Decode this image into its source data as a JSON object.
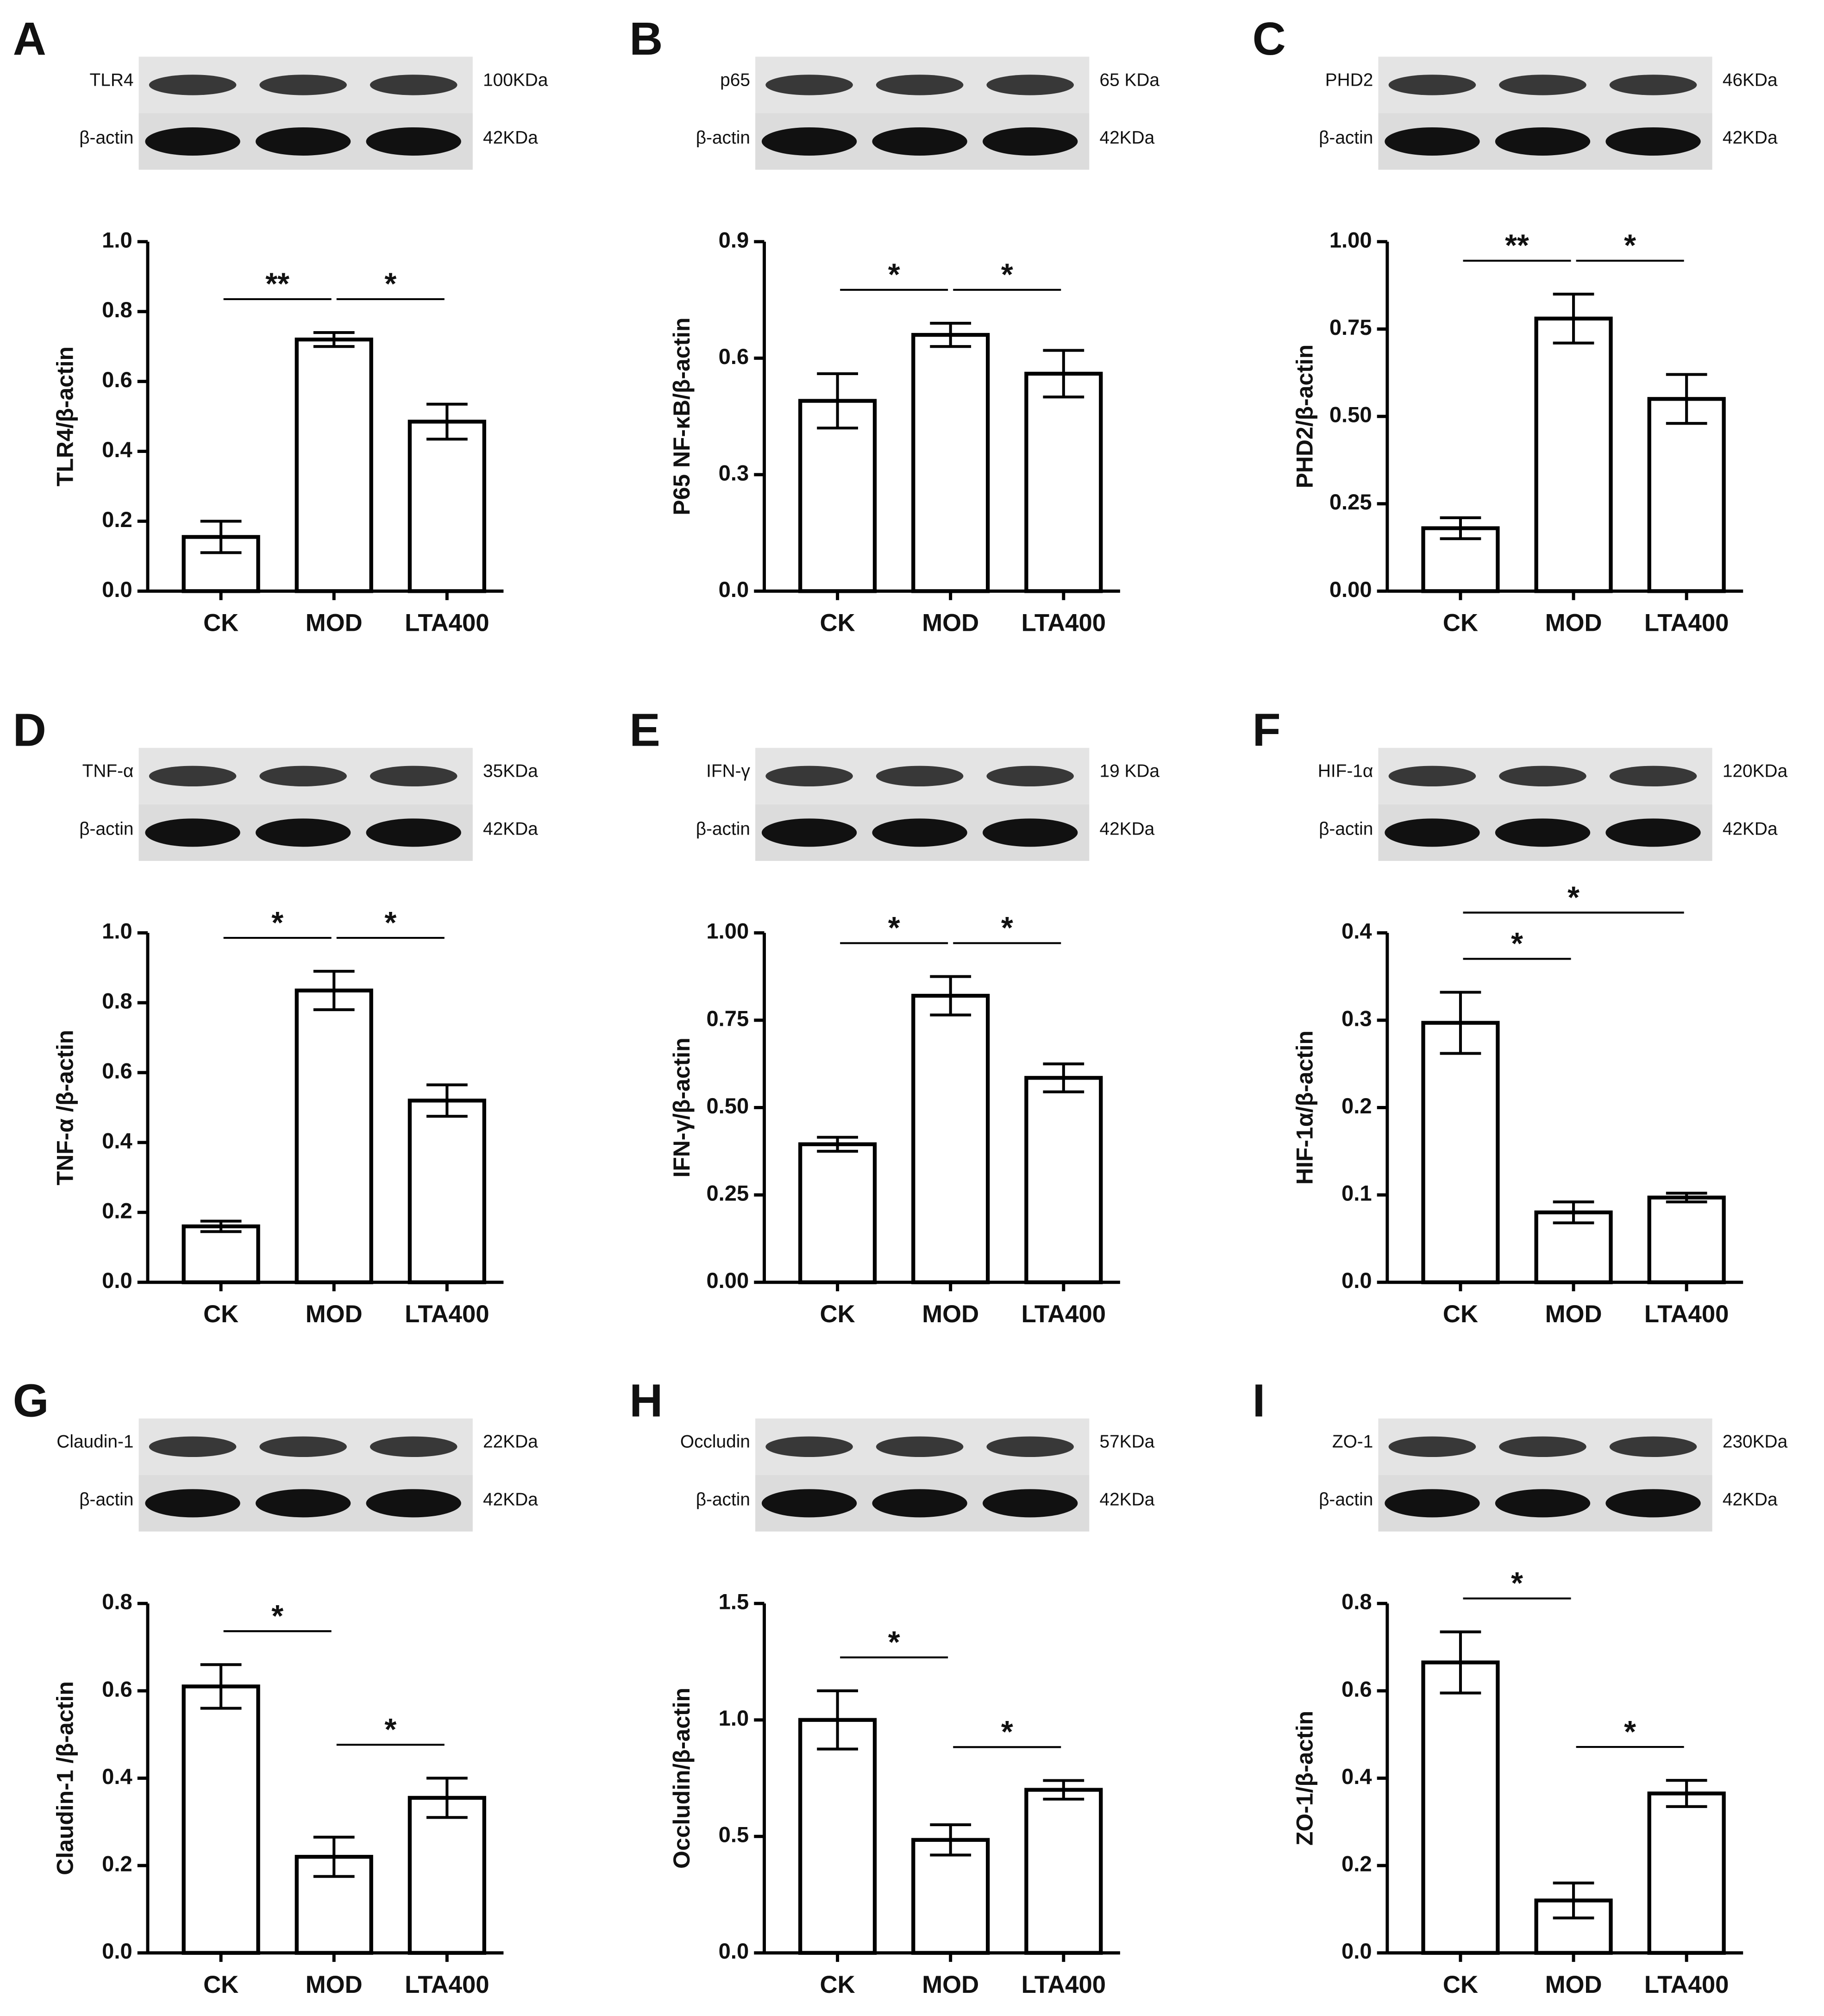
{
  "chart_data": [
    {
      "panel": "A",
      "type": "bar",
      "color": "#ffffff",
      "blot": {
        "target": "TLR4",
        "target_size": "100KDa",
        "control": "β-actin",
        "control_size": "42KDa"
      },
      "ylabel": "TLR4/β-actin",
      "categories": [
        "CK",
        "MOD",
        "LTA400"
      ],
      "values": [
        0.155,
        0.72,
        0.485
      ],
      "errors": [
        0.045,
        0.02,
        0.05
      ],
      "ylim": [
        0,
        1
      ],
      "yticks": [
        {
          "value": 0,
          "label": "0.0"
        },
        0.2,
        0.4,
        0.6,
        0.8,
        {
          "value": 1,
          "label": "1.0"
        }
      ],
      "annotations": [
        {
          "text": "**",
          "between": [
            "CK",
            "MOD"
          ]
        },
        {
          "text": "*",
          "between": [
            "MOD",
            "LTA400"
          ]
        }
      ]
    },
    {
      "panel": "B",
      "type": "bar",
      "color": "#ffffff",
      "blot": {
        "target": "p65",
        "target_size": "65 KDa",
        "control": "β-actin",
        "control_size": "42KDa"
      },
      "ylabel": "P65 NF-κB/β-actin",
      "categories": [
        "CK",
        "MOD",
        "LTA400"
      ],
      "values": [
        0.49,
        0.66,
        0.56
      ],
      "errors": [
        0.07,
        0.03,
        0.06
      ],
      "ylim": [
        0,
        0.9
      ],
      "yticks": [
        {
          "value": 0,
          "label": "0.0"
        },
        0.3,
        0.6,
        0.9
      ],
      "annotations": [
        {
          "text": "*",
          "between": [
            "CK",
            "MOD"
          ]
        },
        {
          "text": "*",
          "between": [
            "MOD",
            "LTA400"
          ]
        }
      ]
    },
    {
      "panel": "C",
      "type": "bar",
      "color": "#ffffff",
      "blot": {
        "target": "PHD2",
        "target_size": "46KDa",
        "control": "β-actin",
        "control_size": "42KDa"
      },
      "ylabel": "PHD2/β-actin",
      "categories": [
        "CK",
        "MOD",
        "LTA400"
      ],
      "values": [
        0.18,
        0.78,
        0.55
      ],
      "errors": [
        0.03,
        0.07,
        0.07
      ],
      "ylim": [
        0,
        1
      ],
      "yticks": [
        {
          "value": 0,
          "label": "0.00"
        },
        0.25,
        {
          "value": 0.5,
          "label": "0.50"
        },
        0.75,
        {
          "value": 1,
          "label": "1.00"
        }
      ],
      "annotations": [
        {
          "text": "**",
          "between": [
            "CK",
            "MOD"
          ]
        },
        {
          "text": "*",
          "between": [
            "MOD",
            "LTA400"
          ]
        }
      ]
    },
    {
      "panel": "D",
      "type": "bar",
      "color": "#ffffff",
      "blot": {
        "target": "TNF-α",
        "target_size": "35KDa",
        "control": "β-actin",
        "control_size": "42KDa"
      },
      "ylabel": "TNF-α /β-actin",
      "categories": [
        "CK",
        "MOD",
        "LTA400"
      ],
      "values": [
        0.16,
        0.835,
        0.52
      ],
      "errors": [
        0.015,
        0.055,
        0.045
      ],
      "ylim": [
        0,
        1
      ],
      "yticks": [
        {
          "value": 0,
          "label": "0.0"
        },
        0.2,
        0.4,
        0.6,
        0.8,
        {
          "value": 1,
          "label": "1.0"
        }
      ],
      "annotations": [
        {
          "text": "*",
          "between": [
            "CK",
            "MOD"
          ]
        },
        {
          "text": "*",
          "between": [
            "MOD",
            "LTA400"
          ]
        }
      ]
    },
    {
      "panel": "E",
      "type": "bar",
      "color": "#ffffff",
      "blot": {
        "target": "IFN-γ",
        "target_size": "19 KDa",
        "control": "β-actin",
        "control_size": "42KDa"
      },
      "ylabel": "IFN-γ/β-actin",
      "categories": [
        "CK",
        "MOD",
        "LTA400"
      ],
      "values": [
        0.395,
        0.82,
        0.585
      ],
      "errors": [
        0.02,
        0.055,
        0.04
      ],
      "ylim": [
        0,
        1
      ],
      "yticks": [
        {
          "value": 0,
          "label": "0.00"
        },
        0.25,
        {
          "value": 0.5,
          "label": "0.50"
        },
        0.75,
        {
          "value": 1,
          "label": "1.00"
        }
      ],
      "annotations": [
        {
          "text": "*",
          "between": [
            "CK",
            "MOD"
          ]
        },
        {
          "text": "*",
          "between": [
            "MOD",
            "LTA400"
          ]
        }
      ]
    },
    {
      "panel": "F",
      "type": "bar",
      "color": "#ffffff",
      "blot": {
        "target": "HIF-1α",
        "target_size": "120KDa",
        "control": "β-actin",
        "control_size": "42KDa"
      },
      "ylabel": "HIF-1α/β-actin",
      "categories": [
        "CK",
        "MOD",
        "LTA400"
      ],
      "values": [
        0.297,
        0.08,
        0.097
      ],
      "errors": [
        0.035,
        0.012,
        0.005
      ],
      "ylim": [
        0,
        0.4
      ],
      "yticks": [
        {
          "value": 0,
          "label": "0.0"
        },
        0.1,
        0.2,
        0.3,
        0.4
      ],
      "annotations": [
        {
          "text": "*",
          "between": [
            "CK",
            "MOD"
          ]
        },
        {
          "text": "*",
          "between": [
            "CK",
            "LTA400"
          ]
        }
      ]
    },
    {
      "panel": "G",
      "type": "bar",
      "color": "#ffffff",
      "blot": {
        "target": "Claudin-1",
        "target_size": "22KDa",
        "control": "β-actin",
        "control_size": "42KDa"
      },
      "ylabel": "Claudin-1 /β-actin",
      "categories": [
        "CK",
        "MOD",
        "LTA400"
      ],
      "values": [
        0.61,
        0.22,
        0.355
      ],
      "errors": [
        0.05,
        0.045,
        0.045
      ],
      "ylim": [
        0,
        0.8
      ],
      "yticks": [
        {
          "value": 0,
          "label": "0.0"
        },
        0.2,
        0.4,
        0.6,
        0.8
      ],
      "annotations": [
        {
          "text": "*",
          "between": [
            "CK",
            "MOD"
          ]
        },
        {
          "text": "*",
          "between": [
            "MOD",
            "LTA400"
          ]
        }
      ]
    },
    {
      "panel": "H",
      "type": "bar",
      "color": "#ffffff",
      "blot": {
        "target": "Occludin",
        "target_size": "57KDa",
        "control": "β-actin",
        "control_size": "42KDa"
      },
      "ylabel": "Occludin/β-actin",
      "categories": [
        "CK",
        "MOD",
        "LTA400"
      ],
      "values": [
        1.0,
        0.485,
        0.7
      ],
      "errors": [
        0.125,
        0.065,
        0.04
      ],
      "ylim": [
        0,
        1.5
      ],
      "yticks": [
        {
          "value": 0,
          "label": "0.0"
        },
        0.5,
        {
          "value": 1,
          "label": "1.0"
        },
        1.5
      ],
      "annotations": [
        {
          "text": "*",
          "between": [
            "CK",
            "MOD"
          ]
        },
        {
          "text": "*",
          "between": [
            "MOD",
            "LTA400"
          ]
        }
      ]
    },
    {
      "panel": "I",
      "type": "bar",
      "color": "#ffffff",
      "blot": {
        "target": "ZO-1",
        "target_size": "230KDa",
        "control": "β-actin",
        "control_size": "42KDa"
      },
      "ylabel": "ZO-1/β-actin",
      "categories": [
        "CK",
        "MOD",
        "LTA400"
      ],
      "values": [
        0.665,
        0.12,
        0.365
      ],
      "errors": [
        0.07,
        0.04,
        0.03
      ],
      "ylim": [
        0,
        0.8
      ],
      "yticks": [
        {
          "value": 0,
          "label": "0.0"
        },
        0.2,
        0.4,
        0.6,
        0.8
      ],
      "annotations": [
        {
          "text": "*",
          "between": [
            "CK",
            "MOD"
          ]
        },
        {
          "text": "*",
          "between": [
            "MOD",
            "LTA400"
          ]
        }
      ]
    }
  ]
}
